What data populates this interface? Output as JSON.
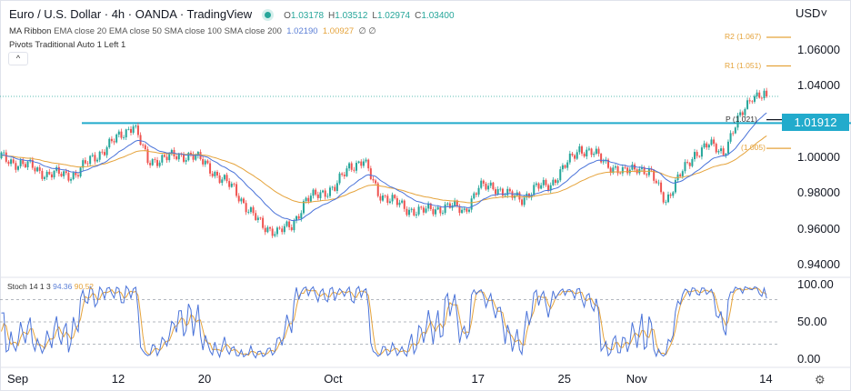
{
  "header": {
    "title": "Euro / U.S. Dollar · 4h · OANDA · TradingView",
    "ohlc": {
      "o_label": "O",
      "o": "1.03178",
      "h_label": "H",
      "h": "1.03512",
      "l_label": "L",
      "l": "1.02974",
      "c_label": "C",
      "c": "1.03400"
    },
    "ma_ribbon": {
      "name": "MA Ribbon",
      "params": "EMA close 20 EMA close 50 SMA close 100 SMA close 200",
      "v1": "1.02190",
      "v2": "1.00927",
      "v3": "∅",
      "v4": "∅"
    },
    "pivots": "Pivots Traditional Auto 1 Left 1",
    "collapse_icon": "chevron-up"
  },
  "price_axis": {
    "currency": "USD˅",
    "ticks": [
      "1.06000",
      "1.04000",
      "1.00000",
      "0.98000",
      "0.96000",
      "0.94000"
    ],
    "tick_values": [
      1.06,
      1.04,
      1.0,
      0.98,
      0.96,
      0.94
    ],
    "highlight_label": "1.01912"
  },
  "pivots": [
    {
      "label": "R2 (1.067)",
      "value": 1.067
    },
    {
      "label": "R1 (1.051)",
      "value": 1.051
    },
    {
      "label": "P (1.021)",
      "value": 1.021
    },
    {
      "label": "(1.005)",
      "value": 1.005
    }
  ],
  "stoch": {
    "label": "Stoch 14 1 3",
    "k": "94.36",
    "d": "90.52",
    "ticks": [
      "100.00",
      "50.00",
      "0.00"
    ],
    "levels": [
      80,
      50,
      20
    ]
  },
  "time_axis": {
    "ticks": [
      {
        "label": "Sep",
        "date": "Sep 1"
      },
      {
        "label": "12",
        "date": "Sep 12"
      },
      {
        "label": "20",
        "date": "Sep 20"
      },
      {
        "label": "Oct",
        "date": "Oct 3"
      },
      {
        "label": "17",
        "date": "Oct 17"
      },
      {
        "label": "25",
        "date": "Oct 25"
      },
      {
        "label": "Nov",
        "date": "Nov 1"
      },
      {
        "label": "14",
        "date": "Nov 14"
      }
    ]
  },
  "colors": {
    "up": "#26a69a",
    "down": "#ef5350",
    "ema20": "#4a73d9",
    "ema50": "#e5a33b",
    "level_line": "#22abcc",
    "pivot": "#e5a33b"
  },
  "chart_data": {
    "type": "candlestick",
    "symbol": "EURUSD",
    "interval": "4h",
    "ylim": [
      0.94,
      1.07
    ],
    "horizontal_line": 1.01912,
    "last_price": 1.034,
    "daily_closes": [
      [
        "Aug 30",
        1.001
      ],
      [
        "Aug 31",
        1.0
      ],
      [
        "Sep 1",
        0.996
      ],
      [
        "Sep 2",
        0.995
      ],
      [
        "Sep 5",
        0.99
      ],
      [
        "Sep 6",
        0.991
      ],
      [
        "Sep 7",
        0.99
      ],
      [
        "Sep 8",
        0.999
      ],
      [
        "Sep 9",
        1.004
      ],
      [
        "Sep 12",
        1.012
      ],
      [
        "Sep 13",
        1.018
      ],
      [
        "Sep 14",
        0.998
      ],
      [
        "Sep 15",
        0.999
      ],
      [
        "Sep 16",
        1.001
      ],
      [
        "Sep 19",
        1.001
      ],
      [
        "Sep 20",
        0.997
      ],
      [
        "Sep 21",
        0.988
      ],
      [
        "Sep 22",
        0.983
      ],
      [
        "Sep 23",
        0.97
      ],
      [
        "Sep 26",
        0.962
      ],
      [
        "Sep 27",
        0.958
      ],
      [
        "Sep 28",
        0.962
      ],
      [
        "Sep 29",
        0.976
      ],
      [
        "Sep 30",
        0.98
      ],
      [
        "Oct 3",
        0.983
      ],
      [
        "Oct 4",
        0.995
      ],
      [
        "Oct 5",
        0.998
      ],
      [
        "Oct 6",
        0.98
      ],
      [
        "Oct 7",
        0.976
      ],
      [
        "Oct 10",
        0.971
      ],
      [
        "Oct 11",
        0.97
      ],
      [
        "Oct 12",
        0.971
      ],
      [
        "Oct 13",
        0.973
      ],
      [
        "Oct 14",
        0.97
      ],
      [
        "Oct 17",
        0.983
      ],
      [
        "Oct 18",
        0.984
      ],
      [
        "Oct 19",
        0.979
      ],
      [
        "Oct 20",
        0.977
      ],
      [
        "Oct 21",
        0.983
      ],
      [
        "Oct 24",
        0.985
      ],
      [
        "Oct 25",
        0.995
      ],
      [
        "Oct 26",
        1.005
      ],
      [
        "Oct 27",
        1.002
      ],
      [
        "Oct 28",
        0.996
      ],
      [
        "Oct 31",
        0.991
      ],
      [
        "Nov 1",
        0.995
      ],
      [
        "Nov 2",
        0.99
      ],
      [
        "Nov 3",
        0.976
      ],
      [
        "Nov 4",
        0.99
      ],
      [
        "Nov 7",
        1.002
      ],
      [
        "Nov 8",
        1.007
      ],
      [
        "Nov 9",
        1.003
      ],
      [
        "Nov 10",
        1.02
      ],
      [
        "Nov 11",
        1.035
      ],
      [
        "Nov 14",
        1.034
      ]
    ]
  }
}
